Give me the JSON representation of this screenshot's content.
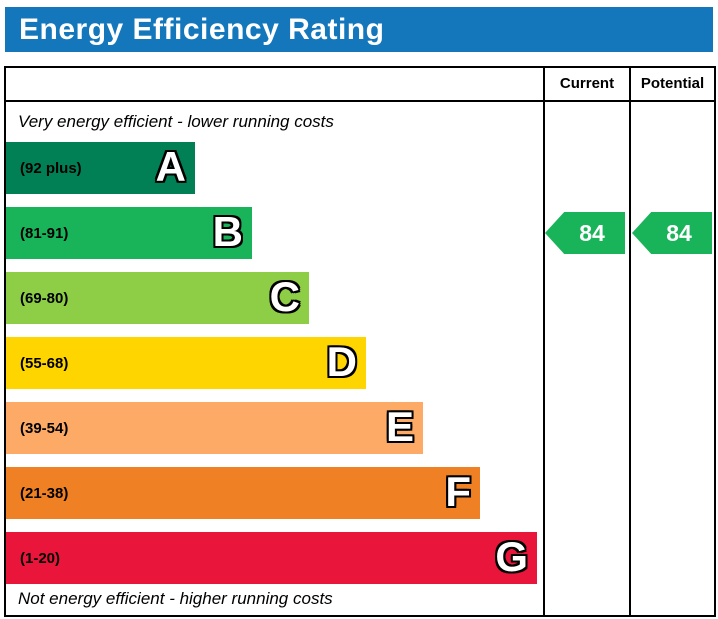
{
  "title": "Energy Efficiency Rating",
  "header_bg": "#1477bc",
  "columns": {
    "current": "Current",
    "potential": "Potential"
  },
  "notes": {
    "top": "Very energy efficient - lower running costs",
    "bottom": "Not energy efficient - higher running costs"
  },
  "bands": [
    {
      "letter": "A",
      "range": "(92 plus)",
      "color": "#008054"
    },
    {
      "letter": "B",
      "range": "(81-91)",
      "color": "#19b459"
    },
    {
      "letter": "C",
      "range": "(69-80)",
      "color": "#8dce46"
    },
    {
      "letter": "D",
      "range": "(55-68)",
      "color": "#ffd500"
    },
    {
      "letter": "E",
      "range": "(39-54)",
      "color": "#fcaa65"
    },
    {
      "letter": "F",
      "range": "(21-38)",
      "color": "#ef8023"
    },
    {
      "letter": "G",
      "range": "(1-20)",
      "color": "#e9153b"
    }
  ],
  "ratings": {
    "current": {
      "value": "84",
      "color": "#19b459"
    },
    "potential": {
      "value": "84",
      "color": "#19b459"
    }
  },
  "chart_data": {
    "type": "bar",
    "title": "Energy Efficiency Rating",
    "categories": [
      "A",
      "B",
      "C",
      "D",
      "E",
      "F",
      "G"
    ],
    "band_ranges": [
      "92 plus",
      "81-91",
      "69-80",
      "55-68",
      "39-54",
      "21-38",
      "1-20"
    ],
    "colors": [
      "#008054",
      "#19b459",
      "#8dce46",
      "#ffd500",
      "#fcaa65",
      "#ef8023",
      "#e9153b"
    ],
    "bar_lengths_relative": [
      1,
      2,
      3,
      4,
      5,
      6,
      7
    ],
    "legend": [
      "Current",
      "Potential"
    ],
    "current": 84,
    "potential": 84,
    "current_band": "B",
    "potential_band": "B",
    "top_annotation": "Very energy efficient - lower running costs",
    "bottom_annotation": "Not energy efficient - higher running costs"
  }
}
